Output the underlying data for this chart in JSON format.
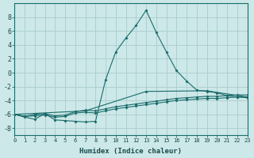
{
  "xlabel": "Humidex (Indice chaleur)",
  "ylabel": "",
  "background_color": "#cce8e8",
  "grid_color": "#aacccc",
  "line_color": "#1a6b6b",
  "xlim": [
    0,
    23
  ],
  "ylim": [
    -9,
    10
  ],
  "xticks": [
    0,
    1,
    2,
    3,
    4,
    5,
    6,
    7,
    8,
    9,
    10,
    11,
    12,
    13,
    14,
    15,
    16,
    17,
    18,
    19,
    20,
    21,
    22,
    23
  ],
  "yticks": [
    -8,
    -6,
    -4,
    -2,
    0,
    2,
    4,
    6,
    8
  ],
  "series1": [
    [
      0,
      -6.0
    ],
    [
      1,
      -6.4
    ],
    [
      2,
      -6.7
    ],
    [
      3,
      -5.9
    ],
    [
      4,
      -6.8
    ],
    [
      5,
      -6.9
    ],
    [
      6,
      -7.0
    ],
    [
      7,
      -7.1
    ],
    [
      8,
      -7.0
    ],
    [
      9,
      -1.0
    ],
    [
      10,
      3.0
    ],
    [
      11,
      5.0
    ],
    [
      12,
      6.8
    ],
    [
      13,
      9.0
    ],
    [
      14,
      5.8
    ],
    [
      15,
      3.0
    ],
    [
      16,
      0.3
    ],
    [
      17,
      -1.2
    ],
    [
      18,
      -2.5
    ],
    [
      19,
      -2.7
    ],
    [
      20,
      -2.9
    ],
    [
      21,
      -3.3
    ],
    [
      22,
      -3.5
    ],
    [
      23,
      -3.6
    ]
  ],
  "series2": [
    [
      0,
      -6.0
    ],
    [
      1,
      -6.3
    ],
    [
      2,
      -6.2
    ],
    [
      3,
      -6.1
    ],
    [
      4,
      -6.4
    ],
    [
      5,
      -6.3
    ],
    [
      6,
      -5.8
    ],
    [
      7,
      -5.7
    ],
    [
      8,
      -5.8
    ],
    [
      9,
      -5.5
    ],
    [
      10,
      -5.2
    ],
    [
      11,
      -5.0
    ],
    [
      12,
      -4.8
    ],
    [
      13,
      -4.6
    ],
    [
      14,
      -4.4
    ],
    [
      15,
      -4.2
    ],
    [
      16,
      -4.0
    ],
    [
      17,
      -3.9
    ],
    [
      18,
      -3.8
    ],
    [
      19,
      -3.7
    ],
    [
      20,
      -3.7
    ],
    [
      21,
      -3.6
    ],
    [
      22,
      -3.5
    ],
    [
      23,
      -3.5
    ]
  ],
  "series3": [
    [
      0,
      -6.0
    ],
    [
      1,
      -6.3
    ],
    [
      2,
      -6.0
    ],
    [
      3,
      -5.9
    ],
    [
      4,
      -6.2
    ],
    [
      5,
      -6.1
    ],
    [
      6,
      -5.6
    ],
    [
      7,
      -5.4
    ],
    [
      8,
      -5.5
    ],
    [
      9,
      -5.2
    ],
    [
      10,
      -4.9
    ],
    [
      11,
      -4.7
    ],
    [
      12,
      -4.5
    ],
    [
      13,
      -4.3
    ],
    [
      14,
      -4.1
    ],
    [
      15,
      -3.9
    ],
    [
      16,
      -3.7
    ],
    [
      17,
      -3.6
    ],
    [
      18,
      -3.5
    ],
    [
      19,
      -3.4
    ],
    [
      20,
      -3.4
    ],
    [
      21,
      -3.3
    ],
    [
      22,
      -3.2
    ],
    [
      23,
      -3.2
    ]
  ],
  "series4": [
    [
      0,
      -6.0
    ],
    [
      7,
      -5.5
    ],
    [
      13,
      -2.7
    ],
    [
      19,
      -2.6
    ],
    [
      23,
      -3.5
    ]
  ]
}
